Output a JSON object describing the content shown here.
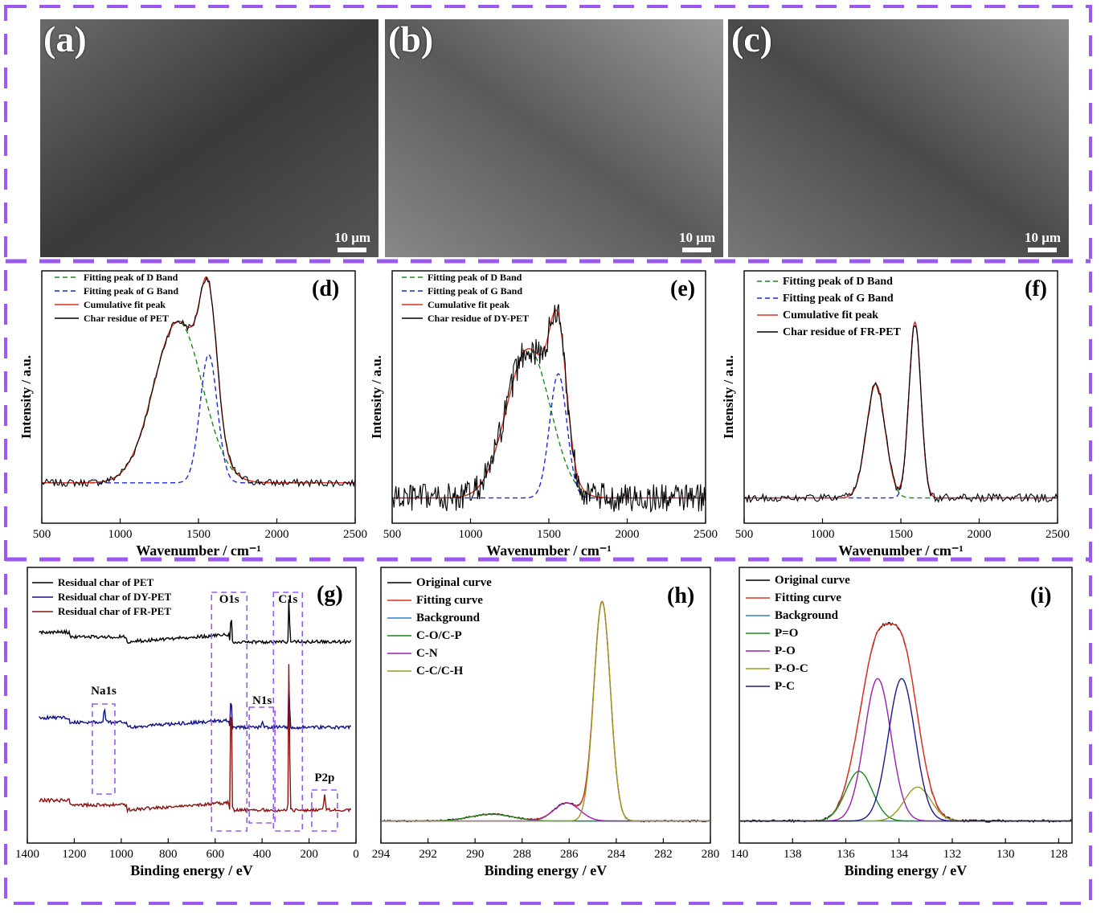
{
  "colors": {
    "frame": "#9b59f0",
    "data": "#000000",
    "fit": "#e03020",
    "d_band": "#1a8a1a",
    "g_band": "#1a2ad8",
    "background": "#2a7fd0",
    "green": "#1a8a1a",
    "purple": "#9a20b0",
    "olive": "#9a9a20",
    "navy": "#1a1a8a",
    "pet": "#000000",
    "dy_pet": "#10108a",
    "fr_pet": "#8a1010",
    "box": "#9b59f0"
  },
  "sem_panels": [
    {
      "label": "(a)",
      "scale": "10 μm"
    },
    {
      "label": "(b)",
      "scale": "10 μm"
    },
    {
      "label": "(c)",
      "scale": "10 μm"
    }
  ],
  "chart_data": [
    {
      "id": "d",
      "panel_label": "(d)",
      "type": "line",
      "xlabel": "Wavenumber / cm⁻¹",
      "ylabel": "Intensity / a.u.",
      "xlim": [
        500,
        2500
      ],
      "xticks": [
        500,
        1000,
        1500,
        2000,
        2500
      ],
      "grid": false,
      "legend_position": "top-left",
      "series": [
        {
          "name": "Fitting peak of D Band",
          "kind": "gauss",
          "color": "d_band",
          "dash": true,
          "peaks": [
            [
              1370,
              0.78,
              155
            ]
          ]
        },
        {
          "name": "Fitting peak of G Band",
          "kind": "gauss",
          "color": "g_band",
          "dash": true,
          "peaks": [
            [
              1565,
              0.62,
              55
            ]
          ]
        },
        {
          "name": "Cumulative fit peak",
          "kind": "gauss",
          "color": "fit",
          "peaks": [
            [
              1370,
              0.78,
              155
            ],
            [
              1565,
              0.62,
              55
            ]
          ]
        },
        {
          "name": "Char residue of PET",
          "kind": "noisy",
          "color": "data",
          "noise": 0.018,
          "step": 10,
          "peaks": [
            [
              1370,
              0.78,
              155
            ],
            [
              1565,
              0.62,
              55
            ]
          ]
        }
      ]
    },
    {
      "id": "e",
      "panel_label": "(e)",
      "type": "line",
      "xlabel": "Wavenumber / cm⁻¹",
      "ylabel": "Intensity / a.u.",
      "xlim": [
        500,
        2500
      ],
      "xticks": [
        500,
        1000,
        1500,
        2000,
        2500
      ],
      "grid": false,
      "legend_position": "top-left",
      "series": [
        {
          "name": "Fitting peak of D Band",
          "kind": "gauss",
          "color": "d_band",
          "dash": true,
          "peaks": [
            [
              1370,
              0.72,
              140
            ]
          ]
        },
        {
          "name": "Fitting peak of G Band",
          "kind": "gauss",
          "color": "g_band",
          "dash": true,
          "peaks": [
            [
              1560,
              0.6,
              55
            ]
          ]
        },
        {
          "name": "Cumulative fit peak",
          "kind": "gauss",
          "color": "fit",
          "peaks": [
            [
              1370,
              0.72,
              140
            ],
            [
              1560,
              0.6,
              55
            ]
          ]
        },
        {
          "name": "Char residue of DY-PET",
          "kind": "noisy",
          "color": "data",
          "noise": 0.07,
          "step": 6,
          "peaks": [
            [
              1370,
              0.72,
              140
            ],
            [
              1560,
              0.6,
              55
            ]
          ]
        }
      ]
    },
    {
      "id": "f",
      "panel_label": "(f)",
      "type": "line",
      "xlabel": "Wavenumber / cm⁻¹",
      "ylabel": "Intensity / a.u.",
      "xlim": [
        500,
        2500
      ],
      "xticks": [
        500,
        1000,
        1500,
        2000,
        2500
      ],
      "grid": false,
      "legend_position": "top-left",
      "series": [
        {
          "name": "Fitting peak of D Band",
          "kind": "gauss",
          "color": "d_band",
          "dash": true,
          "peaks": [
            [
              1340,
              0.55,
              60
            ]
          ]
        },
        {
          "name": "Fitting peak of G Band",
          "kind": "gauss",
          "color": "g_band",
          "dash": true,
          "peaks": [
            [
              1590,
              0.85,
              38
            ]
          ]
        },
        {
          "name": "Cumulative fit peak",
          "kind": "gauss",
          "color": "fit",
          "peaks": [
            [
              1340,
              0.55,
              60
            ],
            [
              1590,
              0.85,
              38
            ]
          ]
        },
        {
          "name": "Char residue of FR-PET",
          "kind": "noisy",
          "color": "data",
          "noise": 0.02,
          "step": 10,
          "peaks": [
            [
              1340,
              0.55,
              60
            ],
            [
              1590,
              0.85,
              38
            ]
          ]
        }
      ]
    },
    {
      "id": "g",
      "panel_label": "(g)",
      "type": "line",
      "xlabel": "Binding energy / eV",
      "ylabel": "",
      "xlim": [
        1400,
        0
      ],
      "xticks": [
        1400,
        1200,
        1000,
        800,
        600,
        400,
        200,
        0
      ],
      "grid": false,
      "legend_position": "top-left",
      "series": [
        {
          "name": "Residual char of PET",
          "kind": "survey",
          "color": "pet",
          "base": 0.73,
          "peaks": [
            [
              532,
              0.12,
              2
            ],
            [
              285,
              0.18,
              2
            ]
          ]
        },
        {
          "name": "Residual char of DY-PET",
          "kind": "survey",
          "color": "dy_pet",
          "base": 0.42,
          "peaks": [
            [
              1072,
              0.05,
              3
            ],
            [
              532,
              0.14,
              2
            ],
            [
              400,
              0.02,
              3
            ],
            [
              285,
              0.19,
              2
            ]
          ]
        },
        {
          "name": "Residual char of FR-PET",
          "kind": "survey",
          "color": "fr_pet",
          "base": 0.12,
          "peaks": [
            [
              532,
              0.55,
              2
            ],
            [
              285,
              0.6,
              2
            ],
            [
              134,
              0.06,
              3
            ]
          ]
        }
      ],
      "annotations": [
        {
          "text": "O1s",
          "x": 540
        },
        {
          "text": "C1s",
          "x": 290
        },
        {
          "text": "Na1s",
          "x": 1075
        },
        {
          "text": "N1s",
          "x": 400
        },
        {
          "text": "P2p",
          "x": 134
        }
      ]
    },
    {
      "id": "h",
      "panel_label": "(h)",
      "type": "line",
      "xlabel": "Binding energy / eV",
      "ylabel": "",
      "xlim": [
        294,
        280
      ],
      "xticks": [
        294,
        292,
        290,
        288,
        286,
        284,
        282,
        280
      ],
      "grid": false,
      "legend_position": "top-left",
      "series": [
        {
          "name": "Original curve",
          "kind": "noisy",
          "color": "data",
          "noise": 0.004,
          "step": 0.05,
          "peaks": [
            [
              284.6,
              0.97,
              0.35
            ],
            [
              286.1,
              0.08,
              0.55
            ],
            [
              289.3,
              0.03,
              0.9
            ]
          ]
        },
        {
          "name": "Fitting curve",
          "kind": "gauss",
          "color": "fit",
          "peaks": [
            [
              284.6,
              0.97,
              0.35
            ],
            [
              286.1,
              0.08,
              0.55
            ],
            [
              289.3,
              0.03,
              0.9
            ]
          ]
        },
        {
          "name": "Background",
          "kind": "gauss",
          "color": "background",
          "peaks": []
        },
        {
          "name": "C-O/C-P",
          "kind": "gauss",
          "color": "green",
          "peaks": [
            [
              289.3,
              0.03,
              0.9
            ]
          ]
        },
        {
          "name": "C-N",
          "kind": "gauss",
          "color": "purple",
          "peaks": [
            [
              286.1,
              0.08,
              0.55
            ]
          ]
        },
        {
          "name": "C-C/C-H",
          "kind": "gauss",
          "color": "olive",
          "peaks": [
            [
              284.6,
              0.97,
              0.35
            ]
          ]
        }
      ]
    },
    {
      "id": "i",
      "panel_label": "(i)",
      "type": "line",
      "xlabel": "Binding energy / eV",
      "ylabel": "",
      "xlim": [
        140,
        127.5
      ],
      "xticks": [
        140,
        138,
        136,
        134,
        132,
        130,
        128
      ],
      "grid": false,
      "legend_position": "top-left",
      "series": [
        {
          "name": "Original curve",
          "kind": "noisy",
          "color": "data",
          "noise": 0.006,
          "step": 0.05,
          "peaks": [
            [
              135.5,
              0.22,
              0.5
            ],
            [
              134.8,
              0.63,
              0.5
            ],
            [
              133.3,
              0.15,
              0.5
            ],
            [
              133.9,
              0.63,
              0.5
            ]
          ]
        },
        {
          "name": "Fitting curve",
          "kind": "gauss",
          "color": "fit",
          "peaks": [
            [
              135.5,
              0.22,
              0.5
            ],
            [
              134.8,
              0.63,
              0.5
            ],
            [
              133.3,
              0.15,
              0.5
            ],
            [
              133.9,
              0.63,
              0.5
            ]
          ]
        },
        {
          "name": "Background",
          "kind": "gauss",
          "color": "background",
          "peaks": []
        },
        {
          "name": "P=O",
          "kind": "gauss",
          "color": "green",
          "peaks": [
            [
              135.5,
              0.22,
              0.5
            ]
          ]
        },
        {
          "name": "P-O",
          "kind": "gauss",
          "color": "purple",
          "peaks": [
            [
              134.8,
              0.63,
              0.5
            ]
          ]
        },
        {
          "name": "P-O-C",
          "kind": "gauss",
          "color": "olive",
          "peaks": [
            [
              133.3,
              0.15,
              0.5
            ]
          ]
        },
        {
          "name": "P-C",
          "kind": "gauss",
          "color": "navy",
          "peaks": [
            [
              133.9,
              0.63,
              0.5
            ]
          ]
        }
      ]
    }
  ]
}
